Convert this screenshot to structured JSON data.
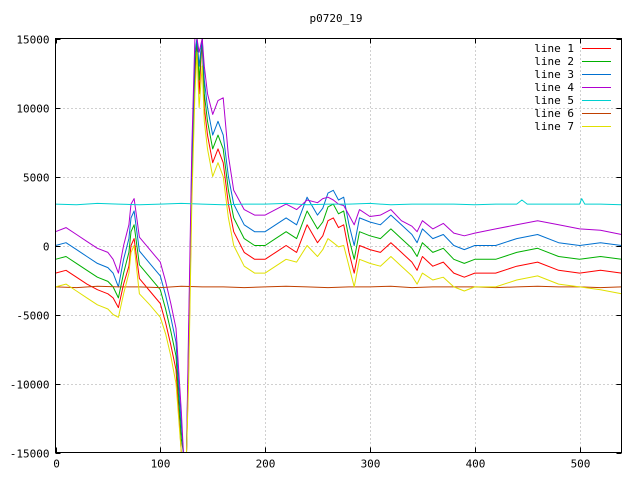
{
  "chart_data": {
    "type": "line",
    "title": "p0720_19",
    "xlabel": "",
    "ylabel": "",
    "xlim": [
      0,
      540
    ],
    "ylim": [
      -15000,
      15000
    ],
    "xticks": [
      0,
      100,
      200,
      300,
      400,
      500
    ],
    "yticks": [
      -15000,
      -10000,
      -5000,
      0,
      5000,
      10000,
      15000
    ],
    "grid": true,
    "legend_position": "top-right",
    "series": [
      {
        "name": "line 1",
        "color": "#ff0000",
        "x": [
          0,
          10,
          20,
          30,
          40,
          50,
          55,
          60,
          65,
          70,
          72,
          75,
          80,
          90,
          100,
          105,
          110,
          115,
          120,
          122,
          125,
          127,
          130,
          133,
          135,
          137,
          140,
          142,
          145,
          150,
          155,
          160,
          165,
          170,
          180,
          190,
          200,
          210,
          220,
          230,
          240,
          250,
          255,
          260,
          265,
          270,
          275,
          280,
          285,
          290,
          300,
          310,
          320,
          330,
          340,
          345,
          350,
          360,
          370,
          380,
          390,
          400,
          420,
          440,
          460,
          480,
          500,
          520,
          540
        ],
        "y": [
          -2000,
          -1800,
          -2300,
          -2800,
          -3200,
          -3500,
          -3800,
          -4500,
          -2800,
          -1500,
          0,
          500,
          -2400,
          -3300,
          -4200,
          -5600,
          -7200,
          -9000,
          -15000,
          -15000,
          -15000,
          -9000,
          4000,
          12000,
          15000,
          11000,
          15000,
          10000,
          8000,
          6000,
          7000,
          6000,
          3000,
          1000,
          -500,
          -1000,
          -1000,
          -500,
          0,
          -500,
          1500,
          200,
          700,
          1800,
          2000,
          1300,
          1500,
          -500,
          -2000,
          0,
          -300,
          -500,
          200,
          -500,
          -1200,
          -1800,
          -800,
          -1500,
          -1200,
          -2000,
          -2300,
          -2000,
          -2000,
          -1500,
          -1200,
          -1800,
          -2000,
          -1800,
          -2000
        ]
      },
      {
        "name": "line 2",
        "color": "#00b000",
        "x": [
          0,
          10,
          20,
          30,
          40,
          50,
          55,
          60,
          65,
          70,
          72,
          75,
          80,
          90,
          100,
          105,
          110,
          115,
          120,
          122,
          125,
          127,
          130,
          133,
          135,
          137,
          140,
          142,
          145,
          150,
          155,
          160,
          165,
          170,
          180,
          190,
          200,
          210,
          220,
          230,
          240,
          250,
          255,
          260,
          265,
          270,
          275,
          280,
          285,
          290,
          300,
          310,
          320,
          330,
          340,
          345,
          350,
          360,
          370,
          380,
          390,
          400,
          420,
          440,
          460,
          480,
          500,
          520,
          540
        ],
        "y": [
          -1000,
          -800,
          -1300,
          -1800,
          -2300,
          -2600,
          -3000,
          -3800,
          -2000,
          -500,
          1000,
          1500,
          -1400,
          -2300,
          -3200,
          -4600,
          -6200,
          -8000,
          -14000,
          -15000,
          -15000,
          -8000,
          5000,
          13000,
          15000,
          12000,
          15000,
          11000,
          9000,
          7000,
          8000,
          7000,
          4000,
          2000,
          500,
          0,
          0,
          500,
          1000,
          500,
          2500,
          1200,
          1700,
          2800,
          3000,
          2300,
          2500,
          500,
          -1000,
          1000,
          700,
          500,
          1200,
          500,
          -200,
          -800,
          200,
          -500,
          -200,
          -1000,
          -1300,
          -1000,
          -1000,
          -500,
          -200,
          -800,
          -1000,
          -800,
          -1000
        ]
      },
      {
        "name": "line 3",
        "color": "#0070d0",
        "x": [
          0,
          10,
          20,
          30,
          40,
          50,
          55,
          60,
          65,
          70,
          72,
          75,
          80,
          90,
          100,
          105,
          110,
          115,
          120,
          122,
          125,
          127,
          130,
          133,
          135,
          137,
          140,
          142,
          145,
          150,
          155,
          160,
          165,
          170,
          180,
          190,
          200,
          210,
          220,
          230,
          240,
          250,
          255,
          260,
          265,
          270,
          275,
          280,
          285,
          290,
          300,
          310,
          320,
          330,
          340,
          345,
          350,
          360,
          370,
          380,
          390,
          400,
          420,
          440,
          460,
          480,
          500,
          520,
          540
        ],
        "y": [
          0,
          200,
          -300,
          -800,
          -1300,
          -1600,
          -2000,
          -3000,
          -1000,
          500,
          2000,
          2500,
          -400,
          -1300,
          -2200,
          -3600,
          -5200,
          -7000,
          -13000,
          -15000,
          -15000,
          -7000,
          6000,
          14000,
          15000,
          13000,
          15000,
          12000,
          10000,
          8000,
          9000,
          8000,
          5000,
          3000,
          1500,
          1000,
          1000,
          1500,
          2000,
          1500,
          3500,
          2200,
          2700,
          3800,
          4000,
          3300,
          3500,
          1500,
          0,
          2000,
          1700,
          1500,
          2200,
          1500,
          800,
          200,
          1200,
          500,
          800,
          0,
          -300,
          0,
          0,
          500,
          800,
          200,
          0,
          200,
          0
        ]
      },
      {
        "name": "line 4",
        "color": "#b000d0",
        "x": [
          0,
          10,
          20,
          30,
          40,
          50,
          55,
          60,
          65,
          70,
          72,
          75,
          80,
          90,
          100,
          105,
          110,
          115,
          120,
          122,
          125,
          127,
          130,
          133,
          135,
          137,
          140,
          142,
          145,
          150,
          155,
          160,
          165,
          170,
          180,
          190,
          200,
          210,
          220,
          230,
          240,
          250,
          255,
          260,
          265,
          270,
          275,
          280,
          285,
          290,
          300,
          310,
          320,
          330,
          340,
          345,
          350,
          360,
          370,
          380,
          390,
          400,
          420,
          440,
          460,
          480,
          500,
          520,
          540
        ],
        "y": [
          1000,
          1300,
          800,
          300,
          -200,
          -500,
          -1000,
          -2000,
          0,
          1500,
          3000,
          3400,
          600,
          -300,
          -1200,
          -2600,
          -4200,
          -6000,
          -12000,
          -15000,
          -15000,
          -6000,
          7000,
          15000,
          15000,
          14000,
          15000,
          13000,
          11000,
          9500,
          10500,
          10700,
          6500,
          4000,
          2600,
          2200,
          2200,
          2600,
          3000,
          2600,
          3300,
          3100,
          3400,
          3500,
          3300,
          3000,
          2900,
          2200,
          1500,
          2600,
          2100,
          2200,
          2600,
          1800,
          1400,
          1000,
          1800,
          1200,
          1600,
          900,
          700,
          900,
          1200,
          1500,
          1800,
          1500,
          1200,
          1100,
          800
        ]
      },
      {
        "name": "line 5",
        "color": "#00d0d0",
        "x": [
          0,
          20,
          40,
          60,
          80,
          100,
          120,
          140,
          160,
          180,
          200,
          220,
          240,
          260,
          280,
          300,
          320,
          340,
          360,
          380,
          400,
          420,
          440,
          445,
          450,
          460,
          480,
          500,
          502,
          505,
          520,
          540
        ],
        "y": [
          3000,
          2950,
          3050,
          3000,
          2950,
          3000,
          3050,
          3000,
          2950,
          3000,
          3000,
          3050,
          2950,
          3000,
          3000,
          3050,
          2950,
          3000,
          3000,
          3000,
          2950,
          3000,
          3000,
          3300,
          3000,
          3000,
          3000,
          3000,
          3400,
          3000,
          3000,
          2950
        ]
      },
      {
        "name": "line 6",
        "color": "#c04000",
        "x": [
          0,
          20,
          40,
          60,
          80,
          100,
          120,
          140,
          160,
          180,
          200,
          220,
          240,
          260,
          280,
          300,
          320,
          340,
          360,
          380,
          400,
          420,
          440,
          460,
          480,
          500,
          520,
          540
        ],
        "y": [
          -3000,
          -3050,
          -2950,
          -3000,
          -3000,
          -3050,
          -2950,
          -3000,
          -3000,
          -3050,
          -3000,
          -2950,
          -3000,
          -3050,
          -3000,
          -3000,
          -2950,
          -3050,
          -3000,
          -3000,
          -3000,
          -3050,
          -3000,
          -2950,
          -3000,
          -3000,
          -3050,
          -3000
        ]
      },
      {
        "name": "line 7",
        "color": "#e0e000",
        "x": [
          0,
          10,
          20,
          30,
          40,
          50,
          55,
          60,
          65,
          70,
          72,
          75,
          80,
          90,
          100,
          105,
          110,
          115,
          120,
          122,
          125,
          127,
          130,
          133,
          135,
          137,
          140,
          142,
          145,
          150,
          155,
          160,
          165,
          170,
          180,
          190,
          200,
          210,
          220,
          230,
          240,
          250,
          255,
          260,
          265,
          270,
          275,
          280,
          285,
          290,
          300,
          310,
          320,
          330,
          340,
          345,
          350,
          360,
          370,
          380,
          390,
          400,
          420,
          440,
          460,
          480,
          500,
          520,
          540
        ],
        "y": [
          -3000,
          -2800,
          -3300,
          -3800,
          -4300,
          -4600,
          -5000,
          -5200,
          -3500,
          -2000,
          -500,
          0,
          -3500,
          -4300,
          -5200,
          -6400,
          -8000,
          -10000,
          -15000,
          -15000,
          -15000,
          -10000,
          3000,
          11000,
          14000,
          10000,
          13000,
          9000,
          7000,
          5000,
          6000,
          5000,
          2000,
          0,
          -1500,
          -2000,
          -2000,
          -1500,
          -1000,
          -1200,
          0,
          -800,
          -300,
          500,
          200,
          -100,
          0,
          -1500,
          -3000,
          -1000,
          -1300,
          -1500,
          -800,
          -1500,
          -2200,
          -2800,
          -2000,
          -2500,
          -2300,
          -3000,
          -3300,
          -3000,
          -3000,
          -2500,
          -2200,
          -2800,
          -3000,
          -3200,
          -3500
        ]
      }
    ]
  }
}
